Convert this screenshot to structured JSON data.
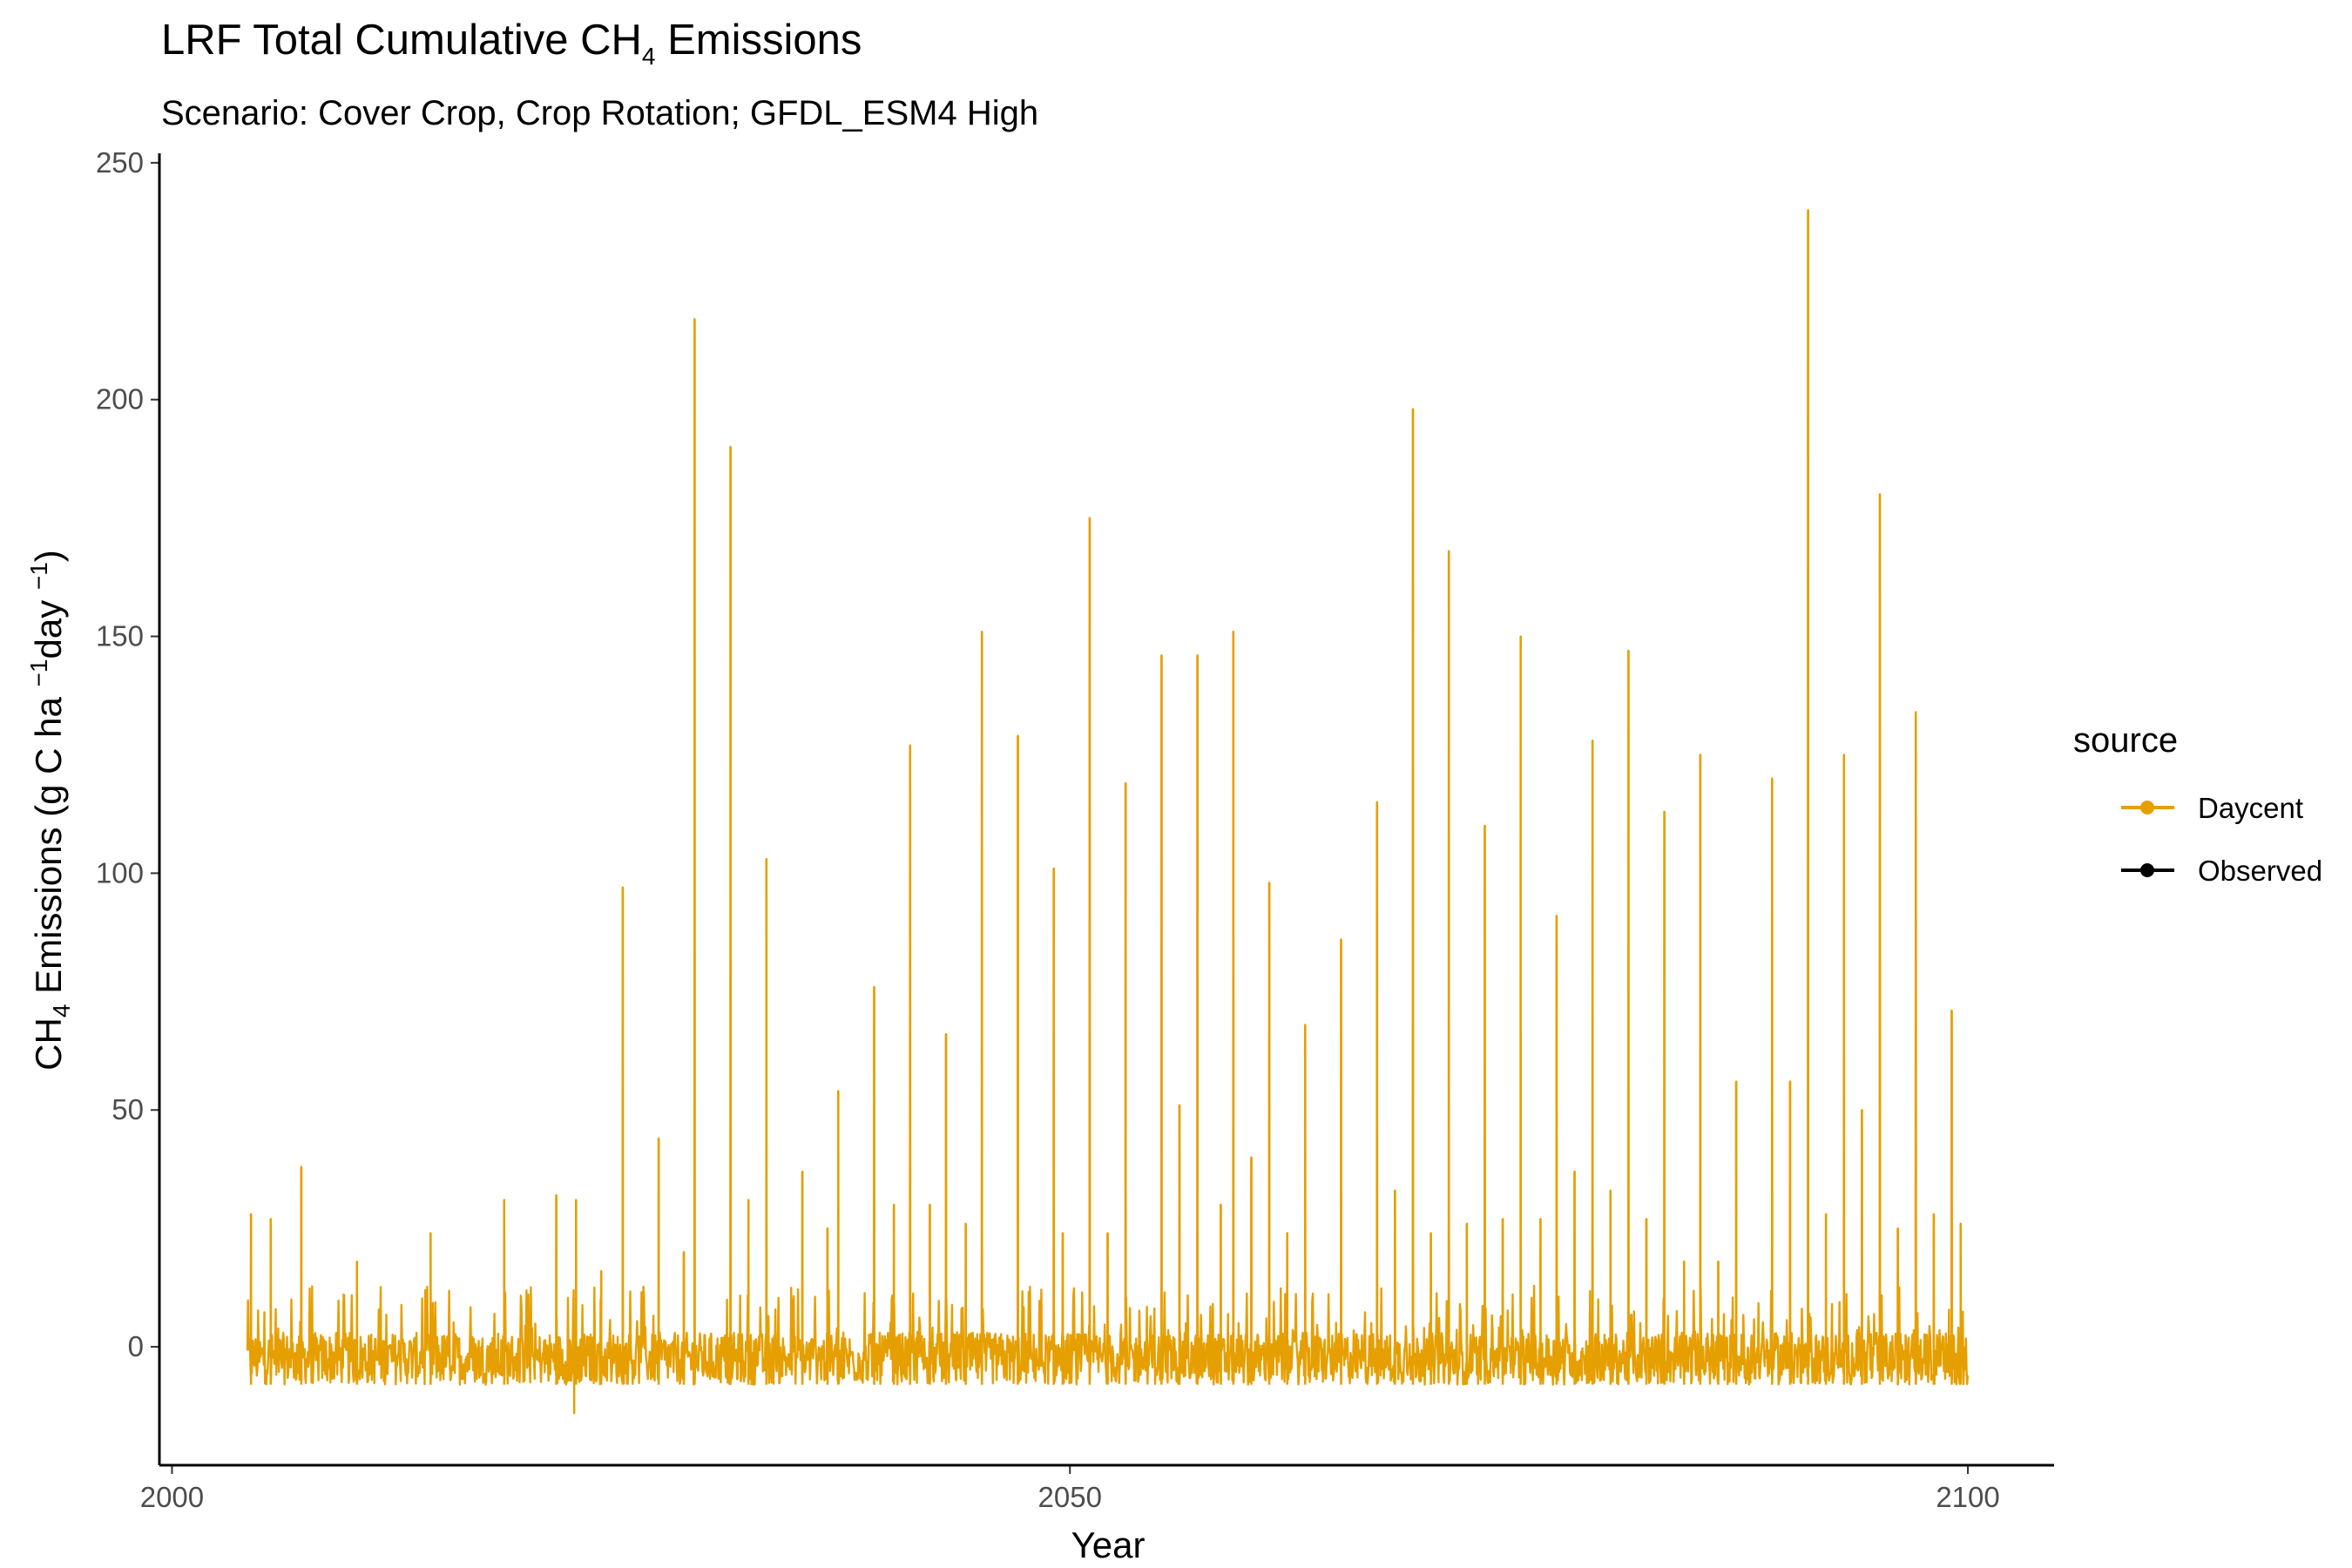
{
  "chart_data": {
    "type": "line",
    "title": {
      "prefix": "LRF Total Cumulative CH",
      "sub": "4",
      "suffix": " Emissions"
    },
    "subtitle": "Scenario: Cover Crop, Crop Rotation; GFDL_ESM4 High",
    "xlabel": "Year",
    "ylabel": {
      "a": "CH",
      "a_sub": "4",
      "b": " Emissions (g C ha ",
      "b_sup": "−1",
      "c": "day ",
      "c_sup": "−1",
      "d": ")"
    },
    "xlim": [
      1999.3,
      2104.8
    ],
    "ylim": [
      -25,
      252
    ],
    "x_ticks": [
      2000,
      2050,
      2100
    ],
    "y_ticks": [
      0,
      50,
      100,
      150,
      200,
      250
    ],
    "x_range": [
      2004.2,
      2100
    ],
    "baseline": {
      "low": -8,
      "high": 3
    },
    "legend": {
      "title": "source",
      "position": "right",
      "items": [
        {
          "label": "Daycent",
          "color": "#E69F00"
        },
        {
          "label": "Observed",
          "color": "#000000"
        }
      ]
    },
    "series": [
      {
        "name": "Daycent",
        "color": "#E69F00",
        "peaks": [
          {
            "x": 2004.4,
            "y": 28
          },
          {
            "x": 2005.5,
            "y": 27
          },
          {
            "x": 2007.2,
            "y": 38
          },
          {
            "x": 2010.3,
            "y": 18
          },
          {
            "x": 2014.4,
            "y": 24
          },
          {
            "x": 2018.5,
            "y": 31
          },
          {
            "x": 2021.4,
            "y": 32
          },
          {
            "x": 2022.5,
            "y": 31
          },
          {
            "x": 2023.9,
            "y": 16
          },
          {
            "x": 2025.1,
            "y": 97
          },
          {
            "x": 2027.1,
            "y": 44
          },
          {
            "x": 2028.5,
            "y": 20
          },
          {
            "x": 2029.1,
            "y": 217
          },
          {
            "x": 2031.1,
            "y": 190
          },
          {
            "x": 2032.1,
            "y": 31
          },
          {
            "x": 2033.1,
            "y": 103
          },
          {
            "x": 2035.1,
            "y": 37
          },
          {
            "x": 2036.5,
            "y": 25
          },
          {
            "x": 2037.1,
            "y": 54
          },
          {
            "x": 2039.1,
            "y": 76
          },
          {
            "x": 2040.2,
            "y": 30
          },
          {
            "x": 2041.1,
            "y": 127
          },
          {
            "x": 2042.2,
            "y": 30
          },
          {
            "x": 2043.1,
            "y": 66
          },
          {
            "x": 2044.2,
            "y": 26
          },
          {
            "x": 2045.1,
            "y": 151
          },
          {
            "x": 2047.1,
            "y": 129
          },
          {
            "x": 2049.1,
            "y": 101
          },
          {
            "x": 2049.6,
            "y": 24
          },
          {
            "x": 2051.1,
            "y": 175
          },
          {
            "x": 2052.1,
            "y": 24
          },
          {
            "x": 2053.1,
            "y": 119
          },
          {
            "x": 2055.1,
            "y": 146
          },
          {
            "x": 2056.1,
            "y": 51
          },
          {
            "x": 2057.1,
            "y": 146
          },
          {
            "x": 2058.4,
            "y": 30
          },
          {
            "x": 2059.1,
            "y": 151
          },
          {
            "x": 2060.1,
            "y": 40
          },
          {
            "x": 2061.1,
            "y": 98
          },
          {
            "x": 2062.1,
            "y": 24
          },
          {
            "x": 2063.1,
            "y": 68
          },
          {
            "x": 2065.1,
            "y": 86
          },
          {
            "x": 2067.1,
            "y": 115
          },
          {
            "x": 2068.1,
            "y": 33
          },
          {
            "x": 2069.1,
            "y": 198
          },
          {
            "x": 2070.1,
            "y": 24
          },
          {
            "x": 2071.1,
            "y": 168
          },
          {
            "x": 2072.1,
            "y": 26
          },
          {
            "x": 2073.1,
            "y": 110
          },
          {
            "x": 2074.1,
            "y": 27
          },
          {
            "x": 2075.1,
            "y": 150
          },
          {
            "x": 2076.2,
            "y": 27
          },
          {
            "x": 2077.1,
            "y": 91
          },
          {
            "x": 2078.1,
            "y": 37
          },
          {
            "x": 2079.1,
            "y": 128
          },
          {
            "x": 2080.1,
            "y": 33
          },
          {
            "x": 2081.1,
            "y": 147
          },
          {
            "x": 2082.1,
            "y": 27
          },
          {
            "x": 2083.1,
            "y": 113
          },
          {
            "x": 2084.2,
            "y": 18
          },
          {
            "x": 2085.1,
            "y": 125
          },
          {
            "x": 2086.1,
            "y": 18
          },
          {
            "x": 2087.1,
            "y": 56
          },
          {
            "x": 2089.1,
            "y": 120
          },
          {
            "x": 2090.1,
            "y": 56
          },
          {
            "x": 2091.1,
            "y": 240
          },
          {
            "x": 2092.1,
            "y": 28
          },
          {
            "x": 2093.1,
            "y": 125
          },
          {
            "x": 2094.1,
            "y": 50
          },
          {
            "x": 2095.1,
            "y": 180
          },
          {
            "x": 2096.1,
            "y": 25
          },
          {
            "x": 2097.1,
            "y": 134
          },
          {
            "x": 2098.1,
            "y": 28
          },
          {
            "x": 2099.1,
            "y": 71
          },
          {
            "x": 2099.6,
            "y": 26
          }
        ],
        "min_point": {
          "x": 2022.4,
          "y": -14
        }
      },
      {
        "name": "Observed",
        "color": "#000000",
        "peaks": []
      }
    ]
  }
}
